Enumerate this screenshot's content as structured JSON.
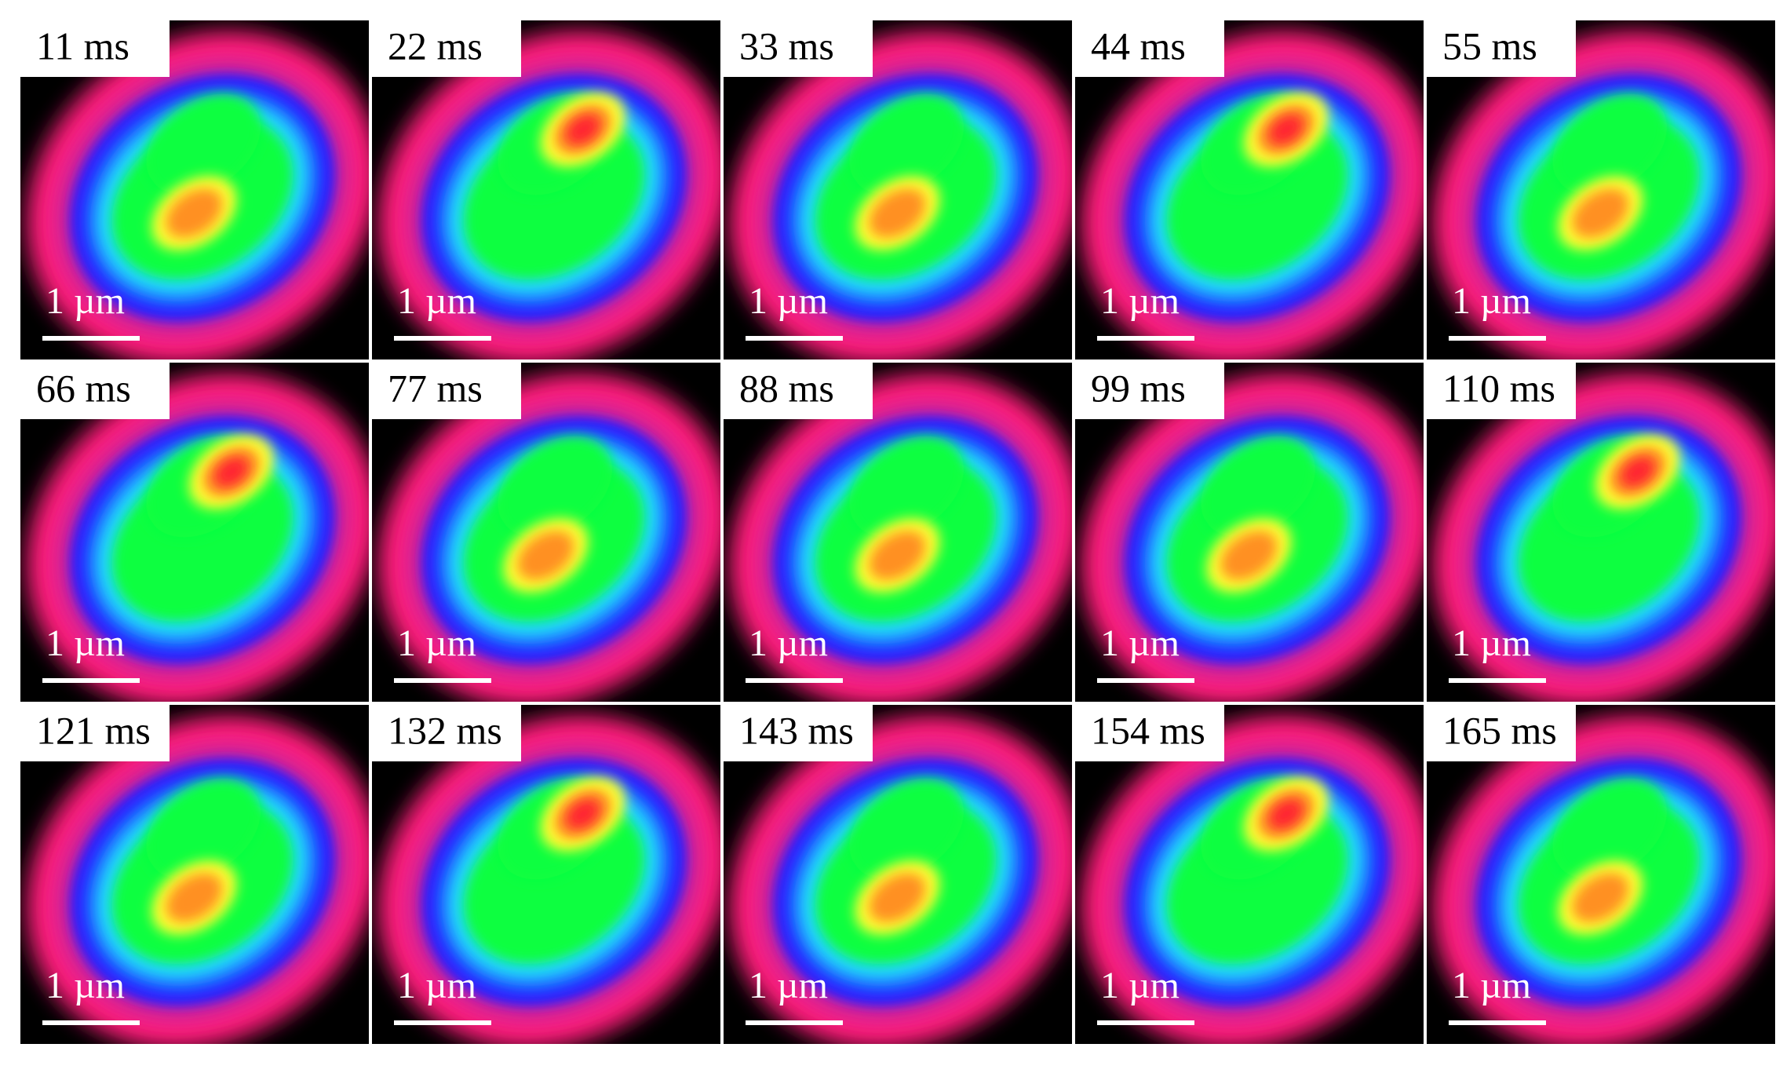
{
  "panels": [
    {
      "time": "11 ms",
      "scale": "1 µm"
    },
    {
      "time": "22 ms",
      "scale": "1 µm"
    },
    {
      "time": "33 ms",
      "scale": "1 µm"
    },
    {
      "time": "44 ms",
      "scale": "1 µm"
    },
    {
      "time": "55 ms",
      "scale": "1 µm"
    },
    {
      "time": "66 ms",
      "scale": "1 µm"
    },
    {
      "time": "77 ms",
      "scale": "1 µm"
    },
    {
      "time": "88 ms",
      "scale": "1 µm"
    },
    {
      "time": "99 ms",
      "scale": "1 µm"
    },
    {
      "time": "110 ms",
      "scale": "1 µm"
    },
    {
      "time": "121 ms",
      "scale": "1 µm"
    },
    {
      "time": "132 ms",
      "scale": "1 µm"
    },
    {
      "time": "143 ms",
      "scale": "1 µm"
    },
    {
      "time": "154 ms",
      "scale": "1 µm"
    },
    {
      "time": "165 ms",
      "scale": "1 µm"
    }
  ]
}
